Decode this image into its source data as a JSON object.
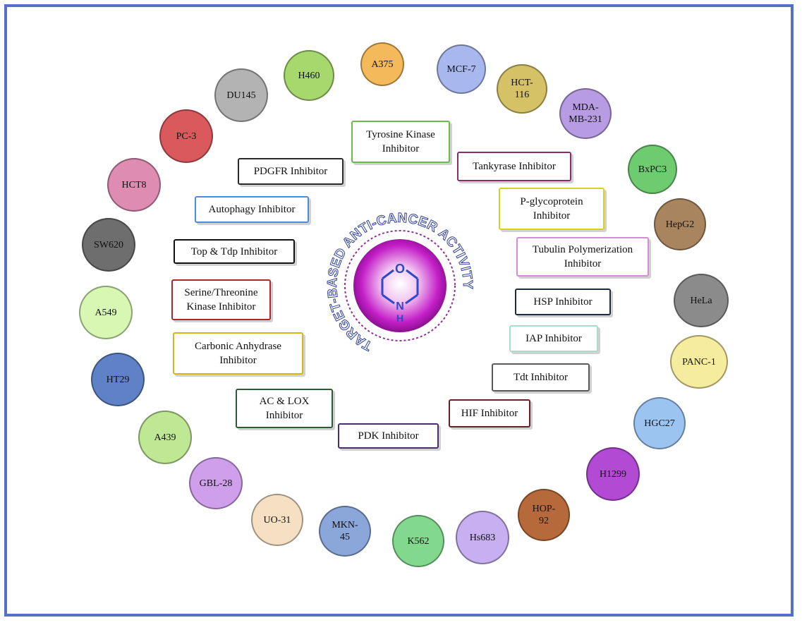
{
  "cell_lines": [
    {
      "label": "A375",
      "color": "#f3b95a"
    },
    {
      "label": "MCF-7",
      "color": "#a8b7ee"
    },
    {
      "label": "HCT-\n116",
      "color": "#d6c266"
    },
    {
      "label": "MDA-\nMB-231",
      "color": "#b79be3"
    },
    {
      "label": "BxPC3",
      "color": "#6fcb6f"
    },
    {
      "label": "HepG2",
      "color": "#a8855f"
    },
    {
      "label": "HeLa",
      "color": "#8b8b8b"
    },
    {
      "label": "PANC-1",
      "color": "#f6ec9e"
    },
    {
      "label": "HGC27",
      "color": "#9bc4f1"
    },
    {
      "label": "H1299",
      "color": "#b24ad4"
    },
    {
      "label": "HOP-\n92",
      "color": "#b6693a"
    },
    {
      "label": "Hs683",
      "color": "#c7aff2"
    },
    {
      "label": "K562",
      "color": "#82d98e"
    },
    {
      "label": "MKN-\n45",
      "color": "#8ba6d9"
    },
    {
      "label": "UO-31",
      "color": "#f6e0c3"
    },
    {
      "label": "GBL-28",
      "color": "#cf9fec"
    },
    {
      "label": "A439",
      "color": "#bfe895"
    },
    {
      "label": "HT29",
      "color": "#5f82c7"
    },
    {
      "label": "A549",
      "color": "#d7f7b3"
    },
    {
      "label": "SW620",
      "color": "#6e6e6e"
    },
    {
      "label": "HCT8",
      "color": "#df8cb2"
    },
    {
      "label": "PC-3",
      "color": "#d9595c"
    },
    {
      "label": "DU145",
      "color": "#b3b3b3"
    },
    {
      "label": "H460",
      "color": "#a6d86e"
    }
  ],
  "inhibitors": [
    {
      "label": "Tyrosine Kinase\nInhibitor",
      "color": "#6bb84f"
    },
    {
      "label": "Tankyrase Inhibitor",
      "color": "#8b2a6d"
    },
    {
      "label": "P-glycoprotein\nInhibitor",
      "color": "#d8d21c"
    },
    {
      "label": "Tubulin Polymerization\nInhibitor",
      "color": "#d68ad7"
    },
    {
      "label": "HSP Inhibitor",
      "color": "#1e2b3a"
    },
    {
      "label": "IAP Inhibitor",
      "color": "#a8dccd"
    },
    {
      "label": "Tdt Inhibitor",
      "color": "#5a5a5a"
    },
    {
      "label": "HIF Inhibitor",
      "color": "#6a1f22"
    },
    {
      "label": "PDK Inhibitor",
      "color": "#4b2d6b"
    },
    {
      "label": "AC & LOX\nInhibitor",
      "color": "#2f5a36"
    },
    {
      "label": "Carbonic Anhydrase\nInhibitor",
      "color": "#d9b21c"
    },
    {
      "label": "Serine/Threonine\nKinase Inhibitor",
      "color": "#b2252a"
    },
    {
      "label": "Top & Tdp Inhibitor",
      "color": "#111111"
    },
    {
      "label": "Autophagy Inhibitor",
      "color": "#4a8fd6"
    },
    {
      "label": "PDGFR Inhibitor",
      "color": "#2a2a2a"
    }
  ],
  "center": {
    "arc_text": "TARGET-BASED ANTI-CANCER ACTIVITY",
    "atom_o": "O",
    "atom_n": "N",
    "atom_h": "H",
    "sphere_color": "#c41fc8"
  },
  "frame_color": "#5470c9"
}
